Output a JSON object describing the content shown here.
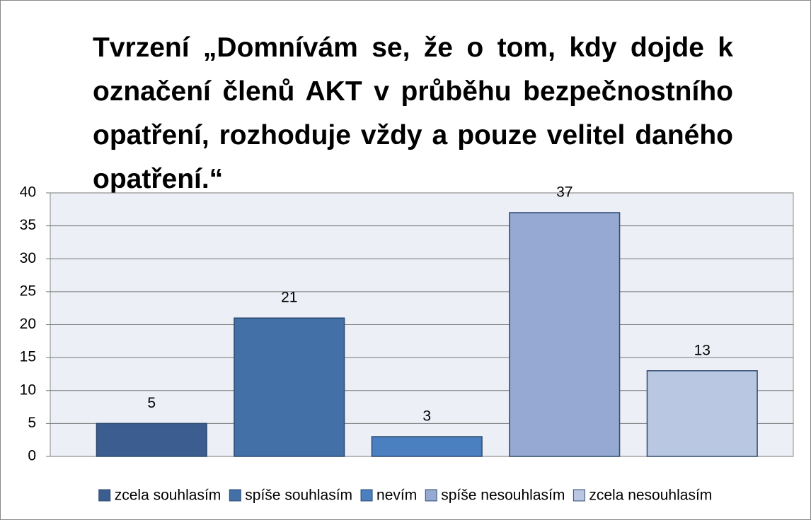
{
  "chart_data": {
    "type": "bar",
    "title": "Tvrzení „Domnívám se, že o tom, kdy dojde k označení členů AKT v průběhu bezpečnostního opatření, rozhoduje vždy a pouze velitel daného opatření.“",
    "categories": [
      "zcela souhlasím",
      "spíše souhlasím",
      "nevím",
      "spíše nesouhlasím",
      "zcela nesouhlasím"
    ],
    "values": [
      5,
      21,
      3,
      37,
      13
    ],
    "colors": [
      "#3b5d8f",
      "#4470a8",
      "#4a7fc0",
      "#95a9d2",
      "#b9c7e2"
    ],
    "ylim": [
      0,
      40
    ],
    "yticks": [
      0,
      5,
      10,
      15,
      20,
      25,
      30,
      35,
      40
    ],
    "grid": true,
    "legend": "bottom"
  }
}
